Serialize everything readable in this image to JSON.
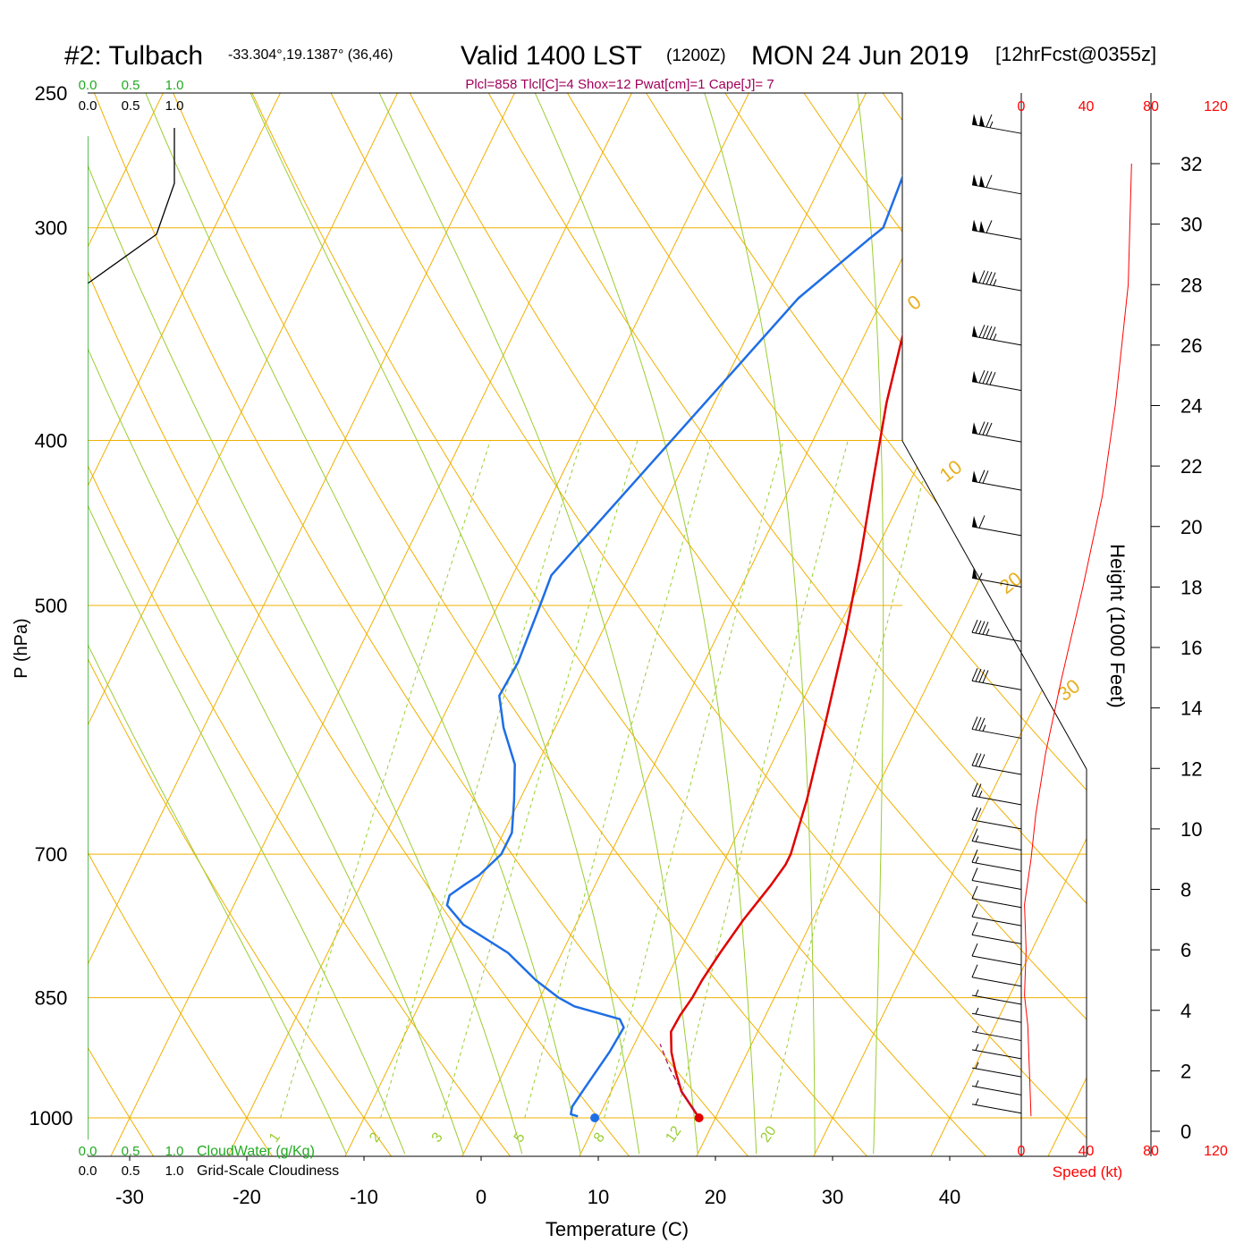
{
  "header": {
    "station": "#2: Tulbach",
    "coords": "-33.304°,19.1387° (36,46)",
    "valid": "Valid 1400 LST",
    "zulu": "(1200Z)",
    "date": "MON 24 Jun 2019",
    "forecast": "[12hrFcst@0355z]",
    "indices": "Plcl=858 Tlcl[C]=4 Shox=12 Pwat[cm]=1 Cape[J]= 7"
  },
  "colors": {
    "temperature": "#e00000",
    "dewpoint": "#1e6ee6",
    "isotherm": "#f0b000",
    "dry_adiabat": "#f0b000",
    "moist_adiabat": "#9acd32",
    "mixing_ratio": "#9acd32",
    "cloud_water": "#22aa22",
    "height_speed": "#ff0000",
    "title_indices": "#a0005a"
  },
  "chart_data": {
    "type": "line",
    "title": "#2: Tulbach",
    "xlabel": "Temperature (C)",
    "ylabel": "P (hPa)",
    "x_ticks": [
      "-30",
      "-20",
      "-10",
      "0",
      "10",
      "20",
      "30",
      "40"
    ],
    "x_tick_values": [
      -30,
      -20,
      -10,
      0,
      10,
      20,
      30,
      40
    ],
    "y_ticks": [
      "250",
      "300",
      "400",
      "500",
      "700",
      "850",
      "1000"
    ],
    "y_tick_values": [
      250,
      300,
      400,
      500,
      700,
      850,
      1000
    ],
    "xlim": [
      -33.5,
      36
    ],
    "ylim": [
      250,
      1030
    ],
    "y_scale": "log",
    "isotherm_labels": [
      "10",
      "0",
      "-10",
      "-20",
      "-30"
    ],
    "isotherm_label_values": [
      10,
      0,
      -10,
      -20,
      -30
    ],
    "adiabat_labels": [
      "0",
      "10",
      "20",
      "30"
    ],
    "adiabat_label_values": [
      0,
      10,
      20,
      30
    ],
    "mixing_ratio_labels": [
      "1",
      "2",
      "3",
      "5",
      "8",
      "12",
      "20"
    ],
    "mixing_ratio_values": [
      1,
      2,
      3,
      5,
      8,
      12,
      20
    ],
    "series": [
      {
        "name": "Temperature",
        "x": [
          18.6,
          17.5,
          16.0,
          14.7,
          13.5,
          12.6,
          12.7,
          13.0,
          13.1,
          13.5,
          14.1,
          15.0,
          15.4,
          15.4,
          14.5,
          12.7,
          10.9,
          9.0,
          6.7,
          4.7,
          3.4,
          2.3,
          1.4,
          0.6,
          -0.3,
          -1.2,
          -2.3
        ],
        "y": [
          1000,
          985,
          965,
          940,
          915,
          890,
          870,
          850,
          830,
          800,
          765,
          730,
          710,
          700,
          650,
          580,
          520,
          470,
          420,
          380,
          350,
          325,
          305,
          290,
          278,
          268,
          260
        ]
      },
      {
        "name": "Dewpoint",
        "x": [
          8.2,
          7.5,
          7.3,
          7.6,
          8.2,
          8.4,
          7.7,
          3.3,
          1.6,
          -1.1,
          -4.6,
          -9.6,
          -11.8,
          -12.0,
          -11.2,
          -10.3,
          -9.3,
          -9.3,
          -10.5,
          -11.9,
          -14.4,
          -16.1,
          -15.9,
          -16.4,
          -16.7,
          -7.2,
          -3.7,
          -2.9,
          -3.5,
          -4.5
        ],
        "y": [
          998,
          995,
          985,
          960,
          915,
          885,
          875,
          860,
          850,
          830,
          800,
          770,
          750,
          740,
          730,
          720,
          700,
          680,
          650,
          620,
          590,
          565,
          540,
          500,
          480,
          330,
          305,
          300,
          275,
          255
        ]
      },
      {
        "name": "Cloud Water",
        "x": [
          0.0,
          0.0
        ],
        "y": [
          265,
          1030
        ]
      }
    ],
    "surface_points": [
      {
        "name": "Surface temperature",
        "x": 18.6,
        "y": 1000
      },
      {
        "name": "Surface dewpoint",
        "x": 9.7,
        "y": 1000
      }
    ],
    "cloud_scales": {
      "top_green": [
        "0.0",
        "0.5",
        "1.0"
      ],
      "top_black": [
        "0.0",
        "0.5",
        "1.0"
      ],
      "bottom_green": [
        "0.0",
        "0.5",
        "1.0"
      ],
      "bottom_black": [
        "0.0",
        "0.5",
        "1.0"
      ],
      "legend_cloudwater": "CloudWater (g/Kg)",
      "legend_cloudiness": "Grid-Scale Cloudiness"
    },
    "height_axis": {
      "label": "Height (1000 Feet)",
      "ticks": [
        "0",
        "2",
        "4",
        "6",
        "8",
        "10",
        "12",
        "14",
        "16",
        "18",
        "20",
        "22",
        "24",
        "26",
        "28",
        "30",
        "32"
      ],
      "tick_values": [
        0,
        2,
        4,
        6,
        8,
        10,
        12,
        14,
        16,
        18,
        20,
        22,
        24,
        26,
        28,
        30,
        32
      ]
    },
    "wind_speed_axis": {
      "label": "Speed (kt)",
      "ticks": [
        "0",
        "40",
        "80",
        "120"
      ],
      "tick_values": [
        0,
        40,
        80,
        120
      ]
    },
    "wind_speed_profile": {
      "speed_kt": [
        6,
        5,
        4,
        2,
        3,
        2,
        6,
        9,
        15,
        25,
        38,
        50,
        58,
        62,
        66,
        68
      ],
      "height_kft": [
        0.5,
        2,
        3.5,
        4.5,
        6,
        7.5,
        9,
        10.5,
        12.5,
        15,
        18,
        21,
        24,
        26,
        28,
        32
      ]
    },
    "wind_barbs": [
      {
        "height_kft": 33.0,
        "speed_kt": 115
      },
      {
        "height_kft": 31.0,
        "speed_kt": 110
      },
      {
        "height_kft": 29.5,
        "speed_kt": 110
      },
      {
        "height_kft": 27.8,
        "speed_kt": 95
      },
      {
        "height_kft": 26.0,
        "speed_kt": 95
      },
      {
        "height_kft": 24.5,
        "speed_kt": 90
      },
      {
        "height_kft": 22.8,
        "speed_kt": 80
      },
      {
        "height_kft": 21.2,
        "speed_kt": 70
      },
      {
        "height_kft": 19.7,
        "speed_kt": 60
      },
      {
        "height_kft": 18.0,
        "speed_kt": 55
      },
      {
        "height_kft": 16.2,
        "speed_kt": 45
      },
      {
        "height_kft": 14.6,
        "speed_kt": 40
      },
      {
        "height_kft": 13.0,
        "speed_kt": 35
      },
      {
        "height_kft": 11.8,
        "speed_kt": 30
      },
      {
        "height_kft": 10.8,
        "speed_kt": 25
      },
      {
        "height_kft": 10.0,
        "speed_kt": 20
      },
      {
        "height_kft": 9.3,
        "speed_kt": 15
      },
      {
        "height_kft": 8.6,
        "speed_kt": 15
      },
      {
        "height_kft": 8.0,
        "speed_kt": 10
      },
      {
        "height_kft": 7.4,
        "speed_kt": 10
      },
      {
        "height_kft": 6.8,
        "speed_kt": 10
      },
      {
        "height_kft": 6.2,
        "speed_kt": 10
      },
      {
        "height_kft": 5.5,
        "speed_kt": 10
      },
      {
        "height_kft": 4.8,
        "speed_kt": 10
      },
      {
        "height_kft": 4.2,
        "speed_kt": 5
      },
      {
        "height_kft": 3.6,
        "speed_kt": 5
      },
      {
        "height_kft": 3.0,
        "speed_kt": 5
      },
      {
        "height_kft": 2.4,
        "speed_kt": 5
      },
      {
        "height_kft": 1.8,
        "speed_kt": 5
      },
      {
        "height_kft": 1.2,
        "speed_kt": 5
      },
      {
        "height_kft": 0.6,
        "speed_kt": 5
      }
    ]
  }
}
